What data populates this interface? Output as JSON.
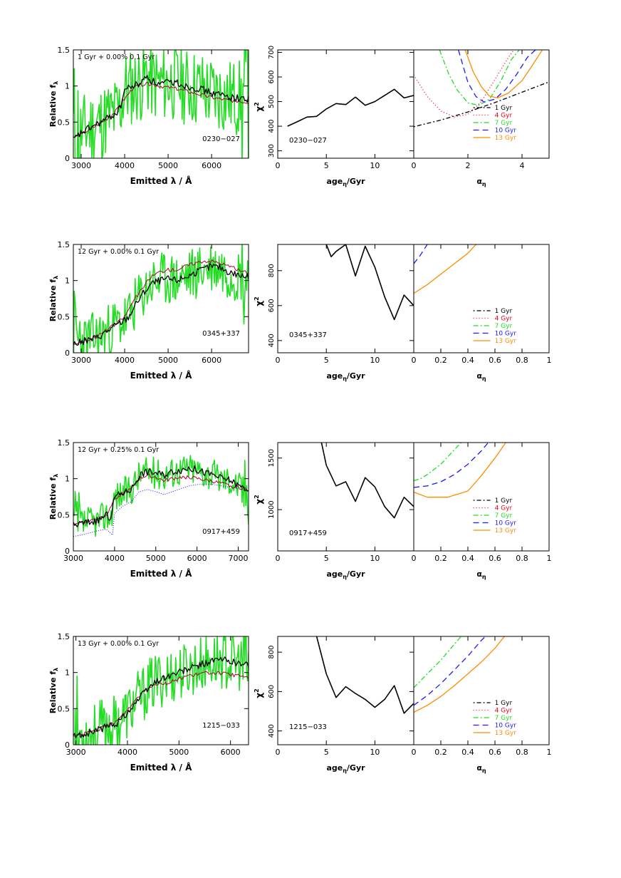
{
  "figure": {
    "colors": {
      "black": "#000000",
      "red": "#e8001c",
      "green": "#22dd22",
      "blue": "#1a1aff",
      "orange": "#ff8c00",
      "maroon": "#b0003a"
    },
    "chi_legend": [
      {
        "label": "1 Gyr",
        "color": "#000000",
        "dash": "2,3,6,3"
      },
      {
        "label": "4 Gyr",
        "color": "#e8001c",
        "dash": "1,3"
      },
      {
        "label": "7 Gyr",
        "color": "#22dd22",
        "dash": "7,3,2,3"
      },
      {
        "label": "10 Gyr",
        "color": "#1a1aff",
        "dash": "8,5"
      },
      {
        "label": "13 Gyr",
        "color": "#ff8c00",
        "dash": ""
      }
    ]
  },
  "chart_data": [
    {
      "type": "line",
      "row": 0,
      "panel": "spectrum",
      "annotation": "1 Gyr  + 0.00% 0.1 Gyr",
      "object": "0230−027",
      "xlabel": "Emitted λ / Å",
      "ylabel": "Relative f_λ",
      "xlim": [
        2820,
        6850
      ],
      "ylim": [
        0,
        1.5
      ],
      "xticks": [
        3000,
        4000,
        5000,
        6000
      ],
      "yticks": [
        0,
        0.5,
        1,
        1.5
      ],
      "observed": {
        "x": [
          2820,
          3000,
          3200,
          3400,
          3600,
          3800,
          3900,
          4000,
          4200,
          4400,
          4500,
          4600,
          4800,
          5000,
          5200,
          5400,
          5600,
          5800,
          6000,
          6200,
          6400,
          6600,
          6850
        ],
        "y": [
          0.25,
          0.35,
          0.42,
          0.48,
          0.55,
          0.62,
          0.7,
          0.95,
          1.0,
          1.05,
          1.15,
          1.08,
          1.02,
          1.05,
          1.05,
          1.0,
          0.98,
          0.95,
          0.9,
          0.88,
          0.85,
          0.83,
          0.82
        ]
      },
      "model": {
        "x": [
          2820,
          3000,
          3200,
          3400,
          3600,
          3800,
          4000,
          4200,
          4400,
          4600,
          4800,
          5000,
          5200,
          5400,
          5600,
          5800,
          6000,
          6200,
          6400,
          6600,
          6850
        ],
        "y": [
          0.28,
          0.33,
          0.4,
          0.47,
          0.55,
          0.65,
          0.82,
          0.98,
          1.02,
          1.03,
          1.0,
          0.98,
          0.96,
          0.93,
          0.9,
          0.87,
          0.84,
          0.82,
          0.8,
          0.79,
          0.77
        ]
      },
      "noisy_spectrum": {
        "amplitude": 0.55,
        "seed": 11
      }
    },
    {
      "type": "line",
      "row": 0,
      "panel": "chi2_age",
      "object": "0230−027",
      "xlabel": "age_η/Gyr",
      "ylabel": "χ²",
      "xlim": [
        0,
        14
      ],
      "ylim": [
        270,
        710
      ],
      "xticks": [
        0,
        5,
        10
      ],
      "yticks": [
        300,
        400,
        500,
        600,
        700
      ],
      "x": [
        1,
        2,
        3,
        4,
        5,
        6,
        7,
        8,
        9,
        10,
        11,
        12,
        13,
        14
      ],
      "y": [
        400,
        418,
        437,
        440,
        470,
        492,
        488,
        518,
        485,
        500,
        525,
        550,
        515,
        525
      ]
    },
    {
      "type": "line",
      "row": 0,
      "panel": "chi2_alpha",
      "xlabel": "α_η",
      "xlim": [
        0,
        5
      ],
      "ylim": [
        270,
        710
      ],
      "xticks": [
        0,
        2,
        4
      ],
      "series": [
        {
          "name": "1 Gyr",
          "x": [
            0,
            1,
            2,
            3,
            4,
            5
          ],
          "y": [
            398,
            425,
            458,
            496,
            538,
            580
          ]
        },
        {
          "name": "4 Gyr",
          "x": [
            0,
            0.5,
            1.0,
            1.5,
            2.0,
            2.5,
            3.0,
            3.5,
            3.7
          ],
          "y": [
            608,
            520,
            462,
            438,
            448,
            500,
            590,
            680,
            710
          ]
        },
        {
          "name": "7 Gyr",
          "x": [
            0.95,
            1.3,
            1.6,
            2.0,
            2.4,
            2.8,
            3.2,
            3.6,
            3.9
          ],
          "y": [
            710,
            610,
            548,
            495,
            485,
            510,
            580,
            670,
            710
          ]
        },
        {
          "name": "10 Gyr",
          "x": [
            1.65,
            2.0,
            2.3,
            2.6,
            3.0,
            3.4,
            3.8,
            4.2,
            4.5
          ],
          "y": [
            710,
            578,
            520,
            498,
            510,
            550,
            610,
            680,
            710
          ]
        },
        {
          "name": "13 Gyr",
          "x": [
            1.9,
            2.2,
            2.5,
            2.8,
            3.1,
            3.5,
            4.0,
            4.4,
            4.75
          ],
          "y": [
            710,
            620,
            560,
            522,
            515,
            535,
            585,
            650,
            710
          ]
        }
      ]
    },
    {
      "type": "line",
      "row": 1,
      "panel": "spectrum",
      "annotation": "12 Gyr  + 0.00% 0.1 Gyr",
      "object": "0345+337",
      "xlabel": "Emitted λ / Å",
      "ylabel": "Relative f_λ",
      "xlim": [
        2820,
        6850
      ],
      "ylim": [
        0,
        1.5
      ],
      "xticks": [
        3000,
        4000,
        5000,
        6000
      ],
      "yticks": [
        0,
        0.5,
        1,
        1.5
      ],
      "observed": {
        "x": [
          2820,
          3000,
          3200,
          3400,
          3600,
          3800,
          4000,
          4100,
          4200,
          4400,
          4600,
          4800,
          5000,
          5200,
          5400,
          5600,
          5800,
          6000,
          6200,
          6400,
          6600,
          6850
        ],
        "y": [
          0.12,
          0.15,
          0.18,
          0.22,
          0.3,
          0.38,
          0.45,
          0.5,
          0.62,
          0.8,
          0.95,
          1.0,
          1.02,
          1.0,
          1.05,
          1.1,
          1.15,
          1.2,
          1.18,
          1.12,
          1.08,
          1.04
        ]
      },
      "model": {
        "x": [
          2820,
          3000,
          3200,
          3400,
          3600,
          3800,
          4000,
          4200,
          4400,
          4600,
          4800,
          5000,
          5200,
          5400,
          5600,
          5800,
          6000,
          6200,
          6400,
          6600,
          6850
        ],
        "y": [
          0.12,
          0.15,
          0.19,
          0.24,
          0.32,
          0.4,
          0.5,
          0.72,
          0.88,
          1.05,
          1.12,
          1.15,
          1.15,
          1.2,
          1.24,
          1.27,
          1.27,
          1.24,
          1.2,
          1.15,
          1.1
        ]
      },
      "noisy_spectrum": {
        "amplitude": 0.38,
        "seed": 23
      }
    },
    {
      "type": "line",
      "row": 1,
      "panel": "chi2_age",
      "object": "0345+337",
      "xlabel": "age_η/Gyr",
      "ylabel": "χ²",
      "xlim": [
        0,
        14
      ],
      "ylim": [
        330,
        950
      ],
      "xticks": [
        0,
        5,
        10
      ],
      "yticks": [
        400,
        600,
        800
      ],
      "x": [
        5,
        5.5,
        6,
        7,
        8,
        9,
        10,
        11,
        12,
        13,
        14
      ],
      "y": [
        950,
        880,
        910,
        950,
        770,
        940,
        820,
        650,
        520,
        660,
        600
      ]
    },
    {
      "type": "line",
      "row": 1,
      "panel": "chi2_alpha",
      "xlabel": "α_η",
      "xlim": [
        0,
        1
      ],
      "ylim": [
        330,
        950
      ],
      "xticks": [
        0,
        0.2,
        0.4,
        0.6,
        0.8,
        1
      ],
      "series": [
        {
          "name": "1 Gyr",
          "x": [],
          "y": []
        },
        {
          "name": "4 Gyr",
          "x": [],
          "y": []
        },
        {
          "name": "7 Gyr",
          "x": [],
          "y": []
        },
        {
          "name": "10 Gyr",
          "x": [
            0,
            0.05,
            0.1
          ],
          "y": [
            840,
            890,
            950
          ]
        },
        {
          "name": "13 Gyr",
          "x": [
            0,
            0.1,
            0.2,
            0.3,
            0.4,
            0.46
          ],
          "y": [
            670,
            720,
            780,
            840,
            900,
            950
          ]
        }
      ]
    },
    {
      "type": "line",
      "row": 2,
      "panel": "spectrum",
      "annotation": "12 Gyr  + 0.25% 0.1 Gyr",
      "object": "0917+459",
      "xlabel": "Emitted λ / Å",
      "ylabel": "Relative f_λ",
      "xlim": [
        3000,
        7250
      ],
      "ylim": [
        0,
        1.5
      ],
      "xticks": [
        3000,
        4000,
        5000,
        6000,
        7000
      ],
      "yticks": [
        0,
        0.5,
        1,
        1.5
      ],
      "observed": {
        "x": [
          3000,
          3200,
          3400,
          3600,
          3800,
          3900,
          4000,
          4200,
          4400,
          4600,
          4800,
          5000,
          5200,
          5400,
          5600,
          5800,
          6000,
          6200,
          6400,
          6600,
          6800,
          7000,
          7250
        ],
        "y": [
          0.35,
          0.38,
          0.4,
          0.42,
          0.5,
          0.45,
          0.75,
          0.8,
          0.85,
          1.05,
          1.1,
          1.08,
          1.05,
          1.1,
          1.12,
          1.15,
          1.12,
          1.08,
          1.05,
          1.0,
          0.98,
          0.9,
          0.85
        ]
      },
      "model": {
        "x": [
          3000,
          3200,
          3400,
          3600,
          3800,
          4000,
          4200,
          4400,
          4600,
          4800,
          5000,
          5200,
          5400,
          5600,
          5800,
          6000,
          6200,
          6400,
          6600,
          6800,
          7000,
          7250
        ],
        "y": [
          0.38,
          0.4,
          0.42,
          0.45,
          0.5,
          0.72,
          0.8,
          0.85,
          1.0,
          1.05,
          1.02,
          0.97,
          1.0,
          1.02,
          1.02,
          1.0,
          0.98,
          0.96,
          0.93,
          0.9,
          0.88,
          0.85
        ]
      },
      "component": {
        "x": [
          3000,
          3200,
          3400,
          3600,
          3800,
          3950,
          4000,
          4200,
          4400,
          4600,
          4800,
          5000,
          5200,
          5400,
          5600,
          5800,
          6000,
          6200,
          6400,
          6600,
          6800,
          7000,
          7250
        ],
        "y": [
          0.2,
          0.22,
          0.25,
          0.28,
          0.3,
          0.22,
          0.52,
          0.62,
          0.68,
          0.82,
          0.85,
          0.82,
          0.78,
          0.82,
          0.86,
          0.9,
          0.92,
          0.92,
          0.92,
          0.9,
          0.88,
          0.86,
          0.84
        ]
      },
      "noisy_spectrum": {
        "amplitude": 0.22,
        "seed": 37
      }
    },
    {
      "type": "line",
      "row": 2,
      "panel": "chi2_age",
      "object": "0917+459",
      "xlabel": "age_η/Gyr",
      "ylabel": "χ²",
      "xlim": [
        0,
        14
      ],
      "ylim": [
        600,
        1650
      ],
      "xticks": [
        0,
        5,
        10
      ],
      "yticks": [
        1000,
        1500
      ],
      "x": [
        4.5,
        5,
        6,
        7,
        8,
        9,
        10,
        11,
        12,
        13,
        14
      ],
      "y": [
        1650,
        1430,
        1230,
        1270,
        1080,
        1310,
        1220,
        1030,
        920,
        1120,
        1030
      ]
    },
    {
      "type": "line",
      "row": 2,
      "panel": "chi2_alpha",
      "xlabel": "α_η",
      "xlim": [
        0,
        1
      ],
      "ylim": [
        600,
        1650
      ],
      "xticks": [
        0,
        0.2,
        0.4,
        0.6,
        0.8,
        1
      ],
      "series": [
        {
          "name": "1 Gyr",
          "x": [],
          "y": []
        },
        {
          "name": "4 Gyr",
          "x": [],
          "y": []
        },
        {
          "name": "7 Gyr",
          "x": [
            0,
            0.05,
            0.1,
            0.2,
            0.3,
            0.35
          ],
          "y": [
            1280,
            1300,
            1340,
            1440,
            1580,
            1650
          ]
        },
        {
          "name": "10 Gyr",
          "x": [
            0,
            0.1,
            0.2,
            0.3,
            0.4,
            0.5,
            0.55
          ],
          "y": [
            1215,
            1230,
            1270,
            1340,
            1440,
            1570,
            1650
          ]
        },
        {
          "name": "13 Gyr",
          "x": [
            0,
            0.1,
            0.25,
            0.4,
            0.5,
            0.6,
            0.68
          ],
          "y": [
            1170,
            1120,
            1120,
            1180,
            1330,
            1500,
            1650
          ]
        }
      ]
    },
    {
      "type": "line",
      "row": 3,
      "panel": "spectrum",
      "annotation": "13 Gyr  + 0.00% 0.1 Gyr",
      "object": "1215−033",
      "xlabel": "Emitted λ / Å",
      "ylabel": "Relative f_λ",
      "xlim": [
        2950,
        6350
      ],
      "ylim": [
        0,
        1.5
      ],
      "xticks": [
        3000,
        4000,
        5000,
        6000
      ],
      "yticks": [
        0,
        0.5,
        1,
        1.5
      ],
      "observed": {
        "x": [
          2950,
          3000,
          3200,
          3400,
          3600,
          3800,
          4000,
          4200,
          4400,
          4600,
          4800,
          5000,
          5200,
          5400,
          5600,
          5800,
          6000,
          6200,
          6350
        ],
        "y": [
          0.12,
          0.12,
          0.15,
          0.2,
          0.25,
          0.3,
          0.45,
          0.62,
          0.78,
          0.9,
          0.95,
          1.0,
          1.05,
          1.1,
          1.15,
          1.18,
          1.16,
          1.12,
          1.1
        ]
      },
      "model": {
        "x": [
          2950,
          3000,
          3200,
          3400,
          3600,
          3800,
          4000,
          4200,
          4400,
          4600,
          4800,
          5000,
          5200,
          5400,
          5600,
          5800,
          6000,
          6200,
          6350
        ],
        "y": [
          0.12,
          0.13,
          0.16,
          0.2,
          0.26,
          0.33,
          0.48,
          0.66,
          0.8,
          0.85,
          0.85,
          0.92,
          0.96,
          0.98,
          1.0,
          0.99,
          0.97,
          0.95,
          0.93
        ]
      },
      "noisy_spectrum": {
        "amplitude": 0.4,
        "seed": 53
      }
    },
    {
      "type": "line",
      "row": 3,
      "panel": "chi2_age",
      "object": "1215−033",
      "xlabel": "age_η/Gyr",
      "ylabel": "χ²",
      "xlim": [
        0,
        14
      ],
      "ylim": [
        330,
        880
      ],
      "xticks": [
        0,
        5,
        10
      ],
      "yticks": [
        400,
        600,
        800
      ],
      "x": [
        4,
        5,
        6,
        7,
        8,
        9,
        10,
        11,
        12,
        13,
        14
      ],
      "y": [
        880,
        690,
        570,
        625,
        590,
        560,
        520,
        560,
        630,
        490,
        540
      ]
    },
    {
      "type": "line",
      "row": 3,
      "panel": "chi2_alpha",
      "xlabel": "α_η",
      "xlim": [
        0,
        1
      ],
      "ylim": [
        330,
        880
      ],
      "xticks": [
        0,
        0.2,
        0.4,
        0.6,
        0.8,
        1
      ],
      "series": [
        {
          "name": "1 Gyr",
          "x": [],
          "y": []
        },
        {
          "name": "4 Gyr",
          "x": [],
          "y": []
        },
        {
          "name": "7 Gyr",
          "x": [
            0,
            0.1,
            0.2,
            0.3,
            0.35
          ],
          "y": [
            620,
            690,
            760,
            840,
            880
          ]
        },
        {
          "name": "10 Gyr",
          "x": [
            0,
            0.1,
            0.2,
            0.3,
            0.4,
            0.5,
            0.53
          ],
          "y": [
            530,
            580,
            640,
            710,
            780,
            860,
            880
          ]
        },
        {
          "name": "13 Gyr",
          "x": [
            0,
            0.1,
            0.2,
            0.3,
            0.4,
            0.5,
            0.6,
            0.67
          ],
          "y": [
            495,
            530,
            575,
            630,
            690,
            750,
            820,
            880
          ]
        }
      ]
    }
  ]
}
